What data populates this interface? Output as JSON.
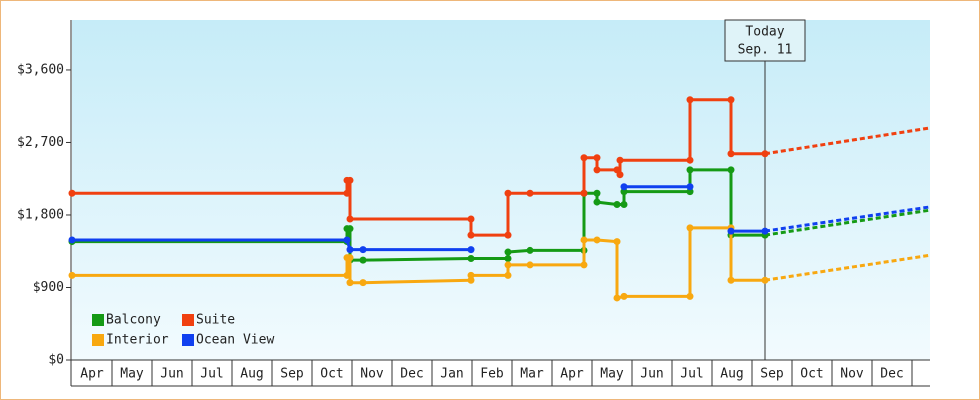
{
  "chart_data": {
    "type": "line",
    "step": true,
    "ylim": [
      0,
      4220
    ],
    "yticks": [
      {
        "value": 0,
        "label": "$0"
      },
      {
        "value": 900,
        "label": "$900"
      },
      {
        "value": 1800,
        "label": "$1,800"
      },
      {
        "value": 2700,
        "label": "$2,700"
      },
      {
        "value": 3600,
        "label": "$3,600"
      }
    ],
    "xlim": [
      0,
      21.5
    ],
    "xticks": [
      {
        "value": 0.5,
        "label": "Apr"
      },
      {
        "value": 1.5,
        "label": "May"
      },
      {
        "value": 2.5,
        "label": "Jun"
      },
      {
        "value": 3.5,
        "label": "Jul"
      },
      {
        "value": 4.5,
        "label": "Aug"
      },
      {
        "value": 5.5,
        "label": "Sep"
      },
      {
        "value": 6.5,
        "label": "Oct"
      },
      {
        "value": 7.5,
        "label": "Nov"
      },
      {
        "value": 8.5,
        "label": "Dec"
      },
      {
        "value": 9.5,
        "label": "Jan"
      },
      {
        "value": 10.5,
        "label": "Feb"
      },
      {
        "value": 11.5,
        "label": "Mar"
      },
      {
        "value": 12.5,
        "label": "Apr"
      },
      {
        "value": 13.5,
        "label": "May"
      },
      {
        "value": 14.5,
        "label": "Jun"
      },
      {
        "value": 15.5,
        "label": "Jul"
      },
      {
        "value": 16.5,
        "label": "Aug"
      },
      {
        "value": 17.5,
        "label": "Sep"
      },
      {
        "value": 18.5,
        "label": "Oct"
      },
      {
        "value": 19.5,
        "label": "Nov"
      },
      {
        "value": 20.5,
        "label": "Dec"
      }
    ],
    "annotation": {
      "lines": [
        "Today",
        "Sep. 11"
      ],
      "x": 17.325
    },
    "legend": "bottom-left",
    "series": [
      {
        "name": "Balcony",
        "color": "#159a15",
        "x": [
          0,
          6.875,
          6.875,
          6.95,
          6.95,
          7.275,
          9.975,
          10.9,
          10.9,
          11.45,
          12.8,
          12.8,
          13.125,
          13.125,
          13.625,
          13.8,
          13.8,
          15.45,
          15.45,
          16.475,
          16.475,
          17.325
        ],
        "values": [
          1470,
          1470,
          1630,
          1630,
          1240,
          1240,
          1260,
          1260,
          1340,
          1360,
          1360,
          2070,
          2070,
          1960,
          1930,
          1930,
          2090,
          2090,
          2360,
          2360,
          1550,
          1550
        ],
        "forecast_x": [
          17.325,
          21.45
        ],
        "forecast_values": [
          1550,
          1860
        ]
      },
      {
        "name": "Suite",
        "color": "#f04010",
        "x": [
          0,
          6.875,
          6.875,
          6.95,
          6.95,
          9.975,
          9.975,
          10.9,
          10.9,
          11.45,
          12.8,
          12.8,
          13.125,
          13.125,
          13.625,
          13.7,
          13.7,
          15.45,
          15.45,
          16.475,
          16.475,
          17.325
        ],
        "values": [
          2070,
          2070,
          2230,
          2230,
          1750,
          1750,
          1550,
          1550,
          2070,
          2070,
          2070,
          2510,
          2510,
          2360,
          2360,
          2300,
          2480,
          2480,
          3230,
          3230,
          2560,
          2560
        ],
        "forecast_x": [
          17.325,
          21.45
        ],
        "forecast_values": [
          2560,
          2880
        ]
      },
      {
        "name": "Interior",
        "color": "#f8a810",
        "x": [
          0,
          6.875,
          6.875,
          6.95,
          6.95,
          7.275,
          9.975,
          9.975,
          10.9,
          10.9,
          11.45,
          12.8,
          12.8,
          13.125,
          13.625,
          13.625,
          13.8,
          15.45,
          15.45,
          16.475,
          16.475,
          17.325
        ],
        "values": [
          1050,
          1050,
          1270,
          1270,
          960,
          960,
          990,
          1050,
          1050,
          1180,
          1180,
          1180,
          1490,
          1490,
          1470,
          770,
          790,
          790,
          1640,
          1640,
          990,
          990
        ],
        "forecast_x": [
          17.325,
          21.45
        ],
        "forecast_values": [
          990,
          1300
        ]
      },
      {
        "name": "Ocean View",
        "color": "#1040f0",
        "x": [
          0,
          6.875,
          6.95,
          7.275,
          9.975,
          11,
          13.8,
          15.45,
          16,
          16.475,
          17.325
        ],
        "values": [
          1490,
          1490,
          1370,
          1370,
          1370,
          null,
          2150,
          2150,
          null,
          1600,
          1600
        ],
        "forecast_x": [
          17.325,
          21.45
        ],
        "forecast_values": [
          1600,
          1900
        ]
      }
    ]
  }
}
